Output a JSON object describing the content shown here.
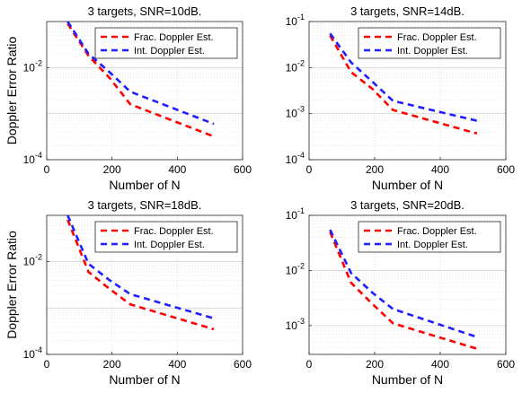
{
  "chart_data": [
    {
      "type": "line",
      "title": "3 targets, SNR=10dB.",
      "xlabel": "Number of N",
      "ylabel": "Doppler Error Ratio",
      "xlim": [
        0,
        600
      ],
      "xticks": [
        "0",
        "200",
        "400",
        "600"
      ],
      "yscale": "log",
      "ylim": [
        0.0001,
        0.1
      ],
      "yticks": [
        {
          "value": 0.0001,
          "base": "10",
          "exp": "-4"
        },
        {
          "value": 0.01,
          "base": "10",
          "exp": "-2"
        }
      ],
      "grid": true,
      "legend": "top-right",
      "series": [
        {
          "name": "Frac. Doppler Est.",
          "color": "#ff0000",
          "x": [
            64,
            128,
            192,
            256,
            512
          ],
          "y": [
            0.09,
            0.018,
            0.006,
            0.0016,
            0.00032
          ]
        },
        {
          "name": "Int. Doppler Est.",
          "color": "#1f1fff",
          "x": [
            64,
            128,
            192,
            256,
            512
          ],
          "y": [
            0.1,
            0.02,
            0.008,
            0.003,
            0.0006
          ]
        }
      ]
    },
    {
      "type": "line",
      "title": "3 targets, SNR=14dB.",
      "xlabel": "Number of N",
      "ylabel": "",
      "xlim": [
        0,
        600
      ],
      "xticks": [
        "0",
        "200",
        "400",
        "600"
      ],
      "yscale": "log",
      "ylim": [
        0.0001,
        0.1
      ],
      "yticks": [
        {
          "value": 0.0001,
          "base": "10",
          "exp": "-4"
        },
        {
          "value": 0.001,
          "base": "10",
          "exp": "-3"
        },
        {
          "value": 0.01,
          "base": "10",
          "exp": "-2"
        },
        {
          "value": 0.1,
          "base": "10",
          "exp": "-1"
        }
      ],
      "grid": true,
      "legend": "top-right",
      "series": [
        {
          "name": "Frac. Doppler Est.",
          "color": "#ff0000",
          "x": [
            64,
            128,
            192,
            256,
            512
          ],
          "y": [
            0.05,
            0.008,
            0.0035,
            0.0012,
            0.00037
          ]
        },
        {
          "name": "Int. Doppler Est.",
          "color": "#1f1fff",
          "x": [
            64,
            128,
            192,
            256,
            512
          ],
          "y": [
            0.055,
            0.013,
            0.005,
            0.0019,
            0.0007
          ]
        }
      ]
    },
    {
      "type": "line",
      "title": "3 targets, SNR=18dB.",
      "xlabel": "Number of N",
      "ylabel": "Doppler Error Ratio",
      "xlim": [
        0,
        600
      ],
      "xticks": [
        "0",
        "200",
        "400",
        "600"
      ],
      "yscale": "log",
      "ylim": [
        0.0001,
        0.1
      ],
      "yticks": [
        {
          "value": 0.0001,
          "base": "10",
          "exp": "-4"
        },
        {
          "value": 0.01,
          "base": "10",
          "exp": "-2"
        }
      ],
      "grid": true,
      "legend": "top-right",
      "series": [
        {
          "name": "Frac. Doppler Est.",
          "color": "#ff0000",
          "x": [
            64,
            128,
            192,
            256,
            512
          ],
          "y": [
            0.08,
            0.006,
            0.0026,
            0.0012,
            0.00035
          ]
        },
        {
          "name": "Int. Doppler Est.",
          "color": "#1f1fff",
          "x": [
            64,
            128,
            192,
            256,
            512
          ],
          "y": [
            0.1,
            0.009,
            0.004,
            0.002,
            0.0006
          ]
        }
      ]
    },
    {
      "type": "line",
      "title": "3 targets, SNR=20dB.",
      "xlabel": "Number of N",
      "ylabel": "",
      "xlim": [
        0,
        600
      ],
      "xticks": [
        "0",
        "200",
        "400",
        "600"
      ],
      "yscale": "log",
      "ylim": [
        0.0003,
        0.1
      ],
      "yticks": [
        {
          "value": 0.001,
          "base": "10",
          "exp": "-3"
        },
        {
          "value": 0.01,
          "base": "10",
          "exp": "-2"
        },
        {
          "value": 0.1,
          "base": "10",
          "exp": "-1"
        }
      ],
      "grid": true,
      "legend": "top-right",
      "series": [
        {
          "name": "Frac. Doppler Est.",
          "color": "#ff0000",
          "x": [
            64,
            128,
            192,
            256,
            512
          ],
          "y": [
            0.05,
            0.006,
            0.0025,
            0.0011,
            0.00038
          ]
        },
        {
          "name": "Int. Doppler Est.",
          "color": "#1f1fff",
          "x": [
            64,
            128,
            192,
            256,
            512
          ],
          "y": [
            0.055,
            0.009,
            0.004,
            0.002,
            0.00062
          ]
        }
      ]
    }
  ]
}
